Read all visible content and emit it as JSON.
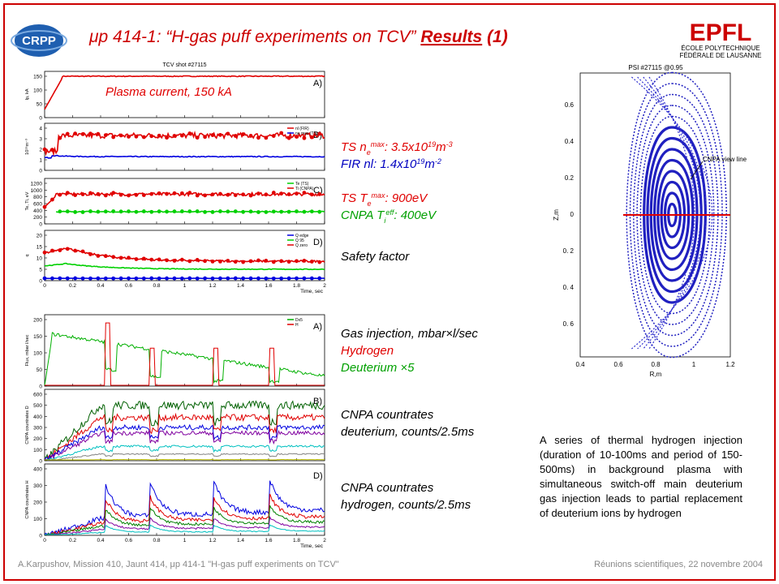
{
  "header": {
    "title": "μp 414-1: “H-gas puff experiments on TCV”",
    "title_link": "Results",
    "title_end": "(1)"
  },
  "logos": {
    "left": "CRPP",
    "right": "EPFL",
    "right_line1": "ÉCOLE POLYTECHNIQUE",
    "right_line2": "FÉDÉRALE DE LAUSANNE"
  },
  "plots": [
    {
      "title": "TCV shot #27115",
      "xlabel": "Time, sec",
      "xticks": [
        0,
        0.2,
        0.4,
        0.6,
        0.8,
        1,
        1.2,
        1.4,
        1.6,
        1.8,
        2
      ],
      "panels": [
        {
          "label": "A)",
          "ylabel": "Ip, kA",
          "yticks": [
            0,
            50,
            100,
            150
          ],
          "legend": []
        },
        {
          "label": "B)",
          "ylabel": "10¹⁹m⁻³",
          "yticks": [
            0,
            1,
            2,
            3,
            4
          ],
          "legend": [
            "nl (FIR)",
            "ne max (TS)"
          ]
        },
        {
          "label": "C)",
          "ylabel": "Te, Ti, eV",
          "yticks": [
            0,
            200,
            400,
            600,
            800,
            1000,
            1200
          ],
          "legend": [
            "Te (TS)",
            "Ti (CNPA)"
          ]
        },
        {
          "label": "D)",
          "ylabel": "q",
          "yticks": [
            0,
            5,
            10,
            15,
            20
          ],
          "legend": [
            "Q edge",
            "Q 95",
            "Q zero"
          ]
        }
      ]
    },
    {
      "xlabel": "Time, sec",
      "xticks": [
        0,
        0.2,
        0.4,
        0.6,
        0.8,
        1,
        1.2,
        1.4,
        1.6,
        1.8,
        2
      ],
      "panels": [
        {
          "label": "A)",
          "ylabel": "Flux, mbar l/sec",
          "yticks": [
            0,
            50,
            100,
            150,
            200
          ],
          "legend": [
            "Dx5",
            "H"
          ]
        },
        {
          "label": "B)",
          "ylabel": "CNPA countrates D",
          "yticks": [
            0,
            100,
            200,
            300,
            400,
            500,
            600
          ],
          "legend": []
        },
        {
          "label": "D)",
          "ylabel": "CNPA countrates H",
          "yticks": [
            0,
            100,
            200,
            300,
            400
          ],
          "legend": []
        }
      ]
    }
  ],
  "psi": {
    "title": "PSI #27115 @0.95",
    "annotation": "CNPA view line",
    "xlabel": "R,m",
    "ylabel": "Z,m",
    "xticks": [
      "0.4",
      "0.6",
      "0.8",
      "1",
      "1.2"
    ],
    "yticks": [
      "0.6",
      "0.4",
      "0.2",
      "0",
      "0. 2",
      "0. 4",
      "0. 6"
    ]
  },
  "annotations": [
    {
      "lines": [
        {
          "color": "#e00000",
          "parts": [
            {
              "text": "Plasma current, 150 kA"
            }
          ]
        }
      ]
    },
    {
      "lines": [
        {
          "color": "#e00000",
          "parts": [
            {
              "text": "TS n"
            },
            {
              "text": "e",
              "style": "sub"
            },
            {
              "text": "max",
              "style": "sup"
            },
            {
              "text": ": 3.5x10"
            },
            {
              "text": "19",
              "style": "sup"
            },
            {
              "text": "m"
            },
            {
              "text": "-3",
              "style": "sup"
            }
          ]
        },
        {
          "color": "#0000c0",
          "parts": [
            {
              "text": "FIR nl: 1.4x10"
            },
            {
              "text": "19",
              "style": "sup"
            },
            {
              "text": "m"
            },
            {
              "text": "-2",
              "style": "sup"
            }
          ]
        }
      ]
    },
    {
      "lines": [
        {
          "color": "#e00000",
          "parts": [
            {
              "text": "TS T"
            },
            {
              "text": "e",
              "style": "sub"
            },
            {
              "text": "max",
              "style": "sup"
            },
            {
              "text": ": 900eV"
            }
          ]
        },
        {
          "color": "#00a000",
          "parts": [
            {
              "text": "CNPA T"
            },
            {
              "text": "i",
              "style": "sub"
            },
            {
              "text": "eff",
              "style": "sup"
            },
            {
              "text": ": 400eV"
            }
          ]
        }
      ]
    },
    {
      "lines": [
        {
          "color": "#000000",
          "parts": [
            {
              "text": "Safety factor"
            }
          ]
        }
      ]
    },
    {
      "lines": [
        {
          "color": "#000000",
          "parts": [
            {
              "text": "Gas injection, mbar×l/sec"
            }
          ]
        },
        {
          "color": "#e00000",
          "parts": [
            {
              "text": "Hydrogen"
            }
          ]
        },
        {
          "color": "#00a000",
          "parts": [
            {
              "text": "Deuterium ×5"
            }
          ]
        }
      ]
    },
    {
      "lines": [
        {
          "color": "#000000",
          "parts": [
            {
              "text": "CNPA countrates"
            }
          ]
        },
        {
          "color": "#000000",
          "parts": [
            {
              "text": "deuterium, counts/2.5ms"
            }
          ]
        }
      ]
    },
    {
      "lines": [
        {
          "color": "#000000",
          "parts": [
            {
              "text": "CNPA countrates"
            }
          ]
        },
        {
          "color": "#000000",
          "parts": [
            {
              "text": "hydrogen, counts/2.5ms"
            }
          ]
        }
      ]
    }
  ],
  "paragraph": "A series of thermal hydrogen injection (duration of 10-100ms and period of 150-500ms) in background plasma with simultaneous switch-off main deuterium gas injection leads to partial replacement of deuterium ions by hydrogen",
  "footer": {
    "left": "A.Karpushov, Mission 410, Jaunt 414, μp 414-1 \"H-gas puff experiments on TCV\"",
    "right": "Réunions scientifiques, 22 novembre 2004"
  }
}
